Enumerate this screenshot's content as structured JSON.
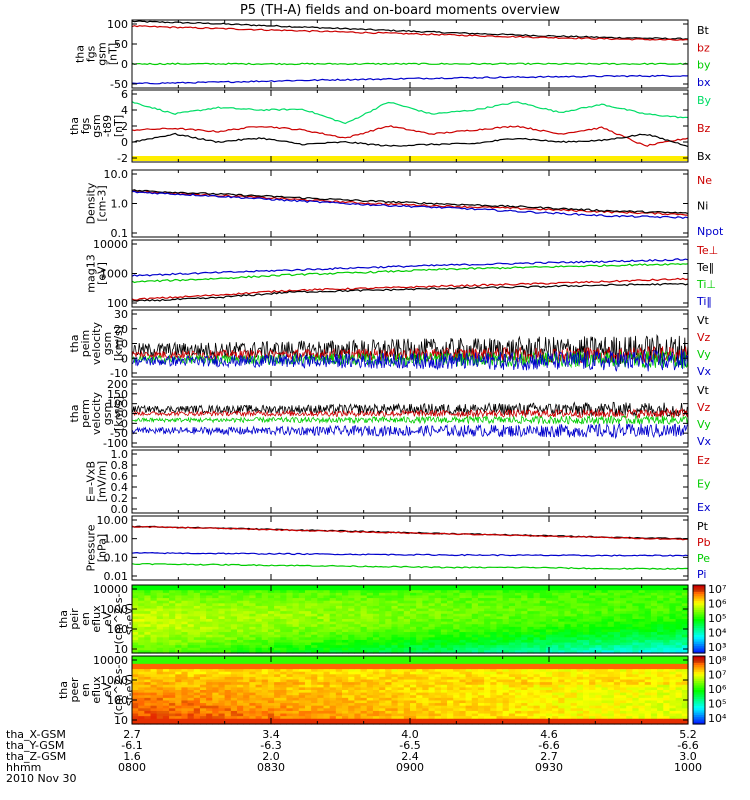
{
  "title": "P5 (TH-A) fields and on-board moments overview",
  "colors": {
    "black": "#000000",
    "red": "#cc0000",
    "green": "#00cc00",
    "blue": "#0000cc",
    "yellow": "#ffee00"
  },
  "chart_data": [
    {
      "type": "line",
      "id": "fgs",
      "ylabel": [
        "tha",
        "fgs",
        "gsm",
        "[nT]"
      ],
      "yticks": [
        "100",
        "50",
        "0",
        "-50"
      ],
      "ylim": [
        -55,
        100
      ],
      "series": [
        {
          "name": "Bt",
          "color": "#000000",
          "values": [
            97,
            92,
            85,
            78,
            71,
            65,
            60,
            57
          ]
        },
        {
          "name": "bz",
          "color": "#cc0000",
          "values": [
            86,
            81,
            76,
            71,
            66,
            61,
            57,
            54
          ]
        },
        {
          "name": "by",
          "color": "#00cc00",
          "values": [
            0,
            0,
            0,
            0,
            0,
            0,
            0,
            0
          ]
        },
        {
          "name": "bx",
          "color": "#0000cc",
          "values": [
            -45,
            -42,
            -38,
            -35,
            -32,
            -30,
            -28,
            -27
          ]
        }
      ]
    },
    {
      "type": "line",
      "id": "fgs-dsg",
      "ylabel": [
        "tha",
        "fgs",
        "gsm",
        "-t89",
        "[nT]"
      ],
      "yticks": [
        "6",
        "4",
        "2",
        "0",
        "-2"
      ],
      "ylim": [
        -3,
        6
      ],
      "series": [
        {
          "name": "By",
          "color": "#00dd66",
          "values": [
            4.5,
            3.0,
            3.8,
            3.5,
            3.6,
            1.8,
            4.5,
            3.0,
            3.5,
            4.5,
            3.2,
            4.2,
            3.0,
            2.5
          ]
        },
        {
          "name": "Bz",
          "color": "#cc0000",
          "values": [
            1.0,
            1.2,
            0.8,
            1.5,
            1.0,
            0.0,
            1.5,
            0.5,
            1.0,
            1.5,
            0.5,
            1.3,
            -1.0,
            0.0
          ]
        },
        {
          "name": "Bx",
          "color": "#000000",
          "values": [
            -0.5,
            0.5,
            -0.5,
            0.0,
            -0.8,
            -0.5,
            -1.0,
            -0.8,
            -0.7,
            0.0,
            -0.5,
            -0.3,
            0.5,
            -1.0
          ]
        }
      ]
    },
    {
      "type": "line",
      "id": "density",
      "ylabel": [
        "Density",
        "[cm-3]"
      ],
      "yticks": [
        "10.0",
        "1.0",
        "0.1"
      ],
      "log": true,
      "ylim": [
        0.1,
        12
      ],
      "series": [
        {
          "name": "Ne",
          "color": "#cc0000",
          "values": [
            2.6,
            2.0,
            1.5,
            1.1,
            0.9,
            0.75,
            0.6,
            0.5
          ]
        },
        {
          "name": "Ni",
          "color": "#000000",
          "values": [
            2.8,
            2.2,
            1.7,
            1.3,
            1.05,
            0.85,
            0.65,
            0.55
          ]
        },
        {
          "name": "Npot",
          "color": "#0000cc",
          "values": [
            2.5,
            1.9,
            1.35,
            1.0,
            0.8,
            0.6,
            0.45,
            0.4
          ]
        }
      ]
    },
    {
      "type": "line",
      "id": "temp",
      "ylabel": [
        "mag13",
        "[eV]"
      ],
      "yticks": [
        "10000",
        "1000",
        "100"
      ],
      "log": true,
      "ylim": [
        100,
        12000
      ],
      "series": [
        {
          "name": "Te⊥",
          "color": "#cc0000",
          "values": [
            170,
            230,
            330,
            380,
            450,
            520,
            620,
            750
          ]
        },
        {
          "name": "Te‖",
          "color": "#000000",
          "values": [
            150,
            190,
            290,
            330,
            380,
            420,
            480,
            520
          ]
        },
        {
          "name": "Ti⊥",
          "color": "#00cc00",
          "values": [
            600,
            750,
            1000,
            1200,
            1500,
            1700,
            1950,
            2200
          ]
        },
        {
          "name": "Ti‖",
          "color": "#0000cc",
          "values": [
            950,
            1150,
            1400,
            1700,
            2000,
            2300,
            2600,
            3000
          ]
        }
      ]
    },
    {
      "type": "line",
      "id": "velocity1",
      "ylabel": [
        "tha",
        "peim",
        "velocity",
        "gsm",
        "[km/s]"
      ],
      "yticks": [
        "30",
        "20",
        "10",
        "0",
        "-10"
      ],
      "ylim": [
        -12,
        30
      ],
      "noise": true,
      "series": [
        {
          "name": "Vt",
          "color": "#000000",
          "center": 5,
          "amp": 7
        },
        {
          "name": "Vz",
          "color": "#cc0000",
          "center": 2,
          "amp": 4
        },
        {
          "name": "Vy",
          "color": "#00cc00",
          "center": -1,
          "amp": 4
        },
        {
          "name": "Vx",
          "color": "#0000cc",
          "center": -2,
          "amp": 5
        }
      ]
    },
    {
      "type": "line",
      "id": "velocity2",
      "ylabel": [
        "tha",
        "perm",
        "velocity",
        "gsm",
        "[km/s]"
      ],
      "yticks": [
        "200",
        "150",
        "100",
        "50",
        "0",
        "-50",
        "-100"
      ],
      "ylim": [
        -110,
        200
      ],
      "noise": true,
      "series": [
        {
          "name": "Vt",
          "color": "#000000",
          "center": 65,
          "amp": 25
        },
        {
          "name": "Vz",
          "color": "#cc0000",
          "center": 45,
          "amp": 15
        },
        {
          "name": "Vy",
          "color": "#00cc00",
          "center": 15,
          "amp": 15
        },
        {
          "name": "Vx",
          "color": "#0000cc",
          "center": -35,
          "amp": 25
        }
      ]
    },
    {
      "type": "line",
      "id": "efield",
      "ylabel": [
        "E=-VxB",
        "[mV/m]"
      ],
      "yticks": [
        "1.0",
        "0.8",
        "0.6",
        "0.4",
        "0.2",
        "0.0"
      ],
      "ylim": [
        0,
        1
      ],
      "series": [
        {
          "name": "Ez",
          "color": "#cc0000",
          "values": []
        },
        {
          "name": "Ey",
          "color": "#00cc00",
          "values": []
        },
        {
          "name": "Ex",
          "color": "#0000cc",
          "values": []
        }
      ]
    },
    {
      "type": "line",
      "id": "pressure",
      "ylabel": [
        "Pressure",
        "[nPa]"
      ],
      "yticks": [
        "10.00",
        "1.00",
        "0.10",
        "0.01"
      ],
      "log": true,
      "ylim": [
        0.01,
        12
      ],
      "series": [
        {
          "name": "Pt",
          "color": "#000000",
          "values": [
            3.8,
            3.2,
            2.6,
            2.1,
            1.7,
            1.4,
            1.15,
            0.95
          ]
        },
        {
          "name": "Pb",
          "color": "#cc0000",
          "values": [
            3.7,
            3.1,
            2.5,
            2.0,
            1.65,
            1.35,
            1.1,
            0.9
          ]
        },
        {
          "name": "Pe",
          "color": "#00cc00",
          "values": [
            0.06,
            0.055,
            0.05,
            0.045,
            0.04,
            0.04,
            0.035,
            0.035
          ]
        },
        {
          "name": "Pi",
          "color": "#0000cc",
          "values": [
            0.2,
            0.19,
            0.18,
            0.17,
            0.16,
            0.155,
            0.15,
            0.15
          ]
        }
      ]
    },
    {
      "type": "heatmap",
      "id": "peir",
      "ylabel": [
        "tha",
        "peir",
        "en",
        "eflux",
        "eV",
        "(cm^2-s-",
        "sr-eV)"
      ],
      "yticks": [
        "10000",
        "1000",
        "100",
        "10"
      ],
      "cbar": [
        "10⁷",
        "10⁶",
        "10⁵",
        "10⁴",
        "10³"
      ]
    },
    {
      "type": "heatmap",
      "id": "peer",
      "ylabel": [
        "tha",
        "peer",
        "en",
        "eflux",
        "eV",
        "(cm^2-s-",
        "sr-eV)"
      ],
      "yticks": [
        "10000",
        "1000",
        "100",
        "10"
      ],
      "cbar": [
        "10⁸",
        "10⁷",
        "10⁶",
        "10⁵",
        "10⁴"
      ]
    }
  ],
  "xaxis": {
    "rows": [
      {
        "label": "tha_X-GSM",
        "values": [
          "2.7",
          "3.4",
          "4.0",
          "4.6",
          "5.2"
        ]
      },
      {
        "label": "tha_Y-GSM",
        "values": [
          "-6.1",
          "-6.3",
          "-6.5",
          "-6.6",
          "-6.6"
        ]
      },
      {
        "label": "tha_Z-GSM",
        "values": [
          "1.6",
          "2.0",
          "2.4",
          "2.7",
          "3.0"
        ]
      },
      {
        "label": "hhmm",
        "values": [
          "0800",
          "0830",
          "0900",
          "0930",
          "1000"
        ]
      }
    ],
    "date": "2010 Nov 30"
  }
}
